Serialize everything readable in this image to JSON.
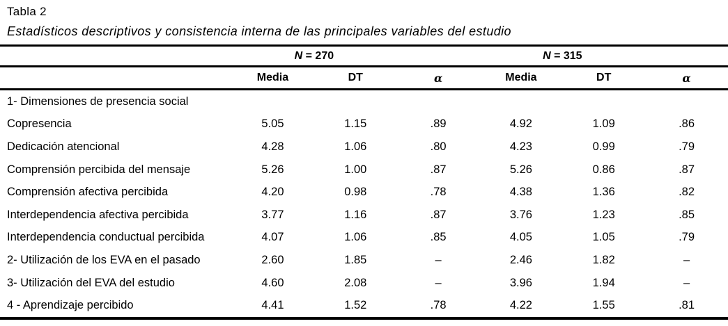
{
  "caption": {
    "label": "Tabla 2",
    "title": "Estadísticos descriptivos y consistencia interna de las principales variables del estudio"
  },
  "table": {
    "groups": [
      {
        "symbol": "N",
        "rest": " = 270"
      },
      {
        "symbol": "N",
        "rest": " = 315"
      }
    ],
    "col_headers": [
      "Media",
      "DT",
      "α",
      "Media",
      "DT",
      "α"
    ],
    "rows": [
      {
        "label": "1- Dimensiones de presencia social",
        "values": [
          "",
          "",
          "",
          "",
          "",
          ""
        ]
      },
      {
        "label": "Copresencia",
        "values": [
          "5.05",
          "1.15",
          ".89",
          "4.92",
          "1.09",
          ".86"
        ]
      },
      {
        "label": "Dedicación atencional",
        "values": [
          "4.28",
          "1.06",
          ".80",
          "4.23",
          "0.99",
          ".79"
        ]
      },
      {
        "label": "Comprensión percibida del mensaje",
        "values": [
          "5.26",
          "1.00",
          ".87",
          "5.26",
          "0.86",
          ".87"
        ]
      },
      {
        "label": "Comprensión afectiva percibida",
        "values": [
          "4.20",
          "0.98",
          ".78",
          "4.38",
          "1.36",
          ".82"
        ]
      },
      {
        "label": "Interdependencia afectiva percibida",
        "values": [
          "3.77",
          "1.16",
          ".87",
          "3.76",
          "1.23",
          ".85"
        ]
      },
      {
        "label": "Interdependencia conductual percibida",
        "values": [
          "4.07",
          "1.06",
          ".85",
          "4.05",
          "1.05",
          ".79"
        ]
      },
      {
        "label": "2- Utilización de los EVA en el pasado",
        "values": [
          "2.60",
          "1.85",
          "–",
          "2.46",
          "1.82",
          "–"
        ]
      },
      {
        "label": "3- Utilización del EVA del estudio",
        "values": [
          "4.60",
          "2.08",
          "–",
          "3.96",
          "1.94",
          "–"
        ]
      },
      {
        "label": "4 - Aprendizaje percibido",
        "values": [
          "4.41",
          "1.52",
          ".78",
          "4.22",
          "1.55",
          ".81"
        ]
      }
    ]
  }
}
